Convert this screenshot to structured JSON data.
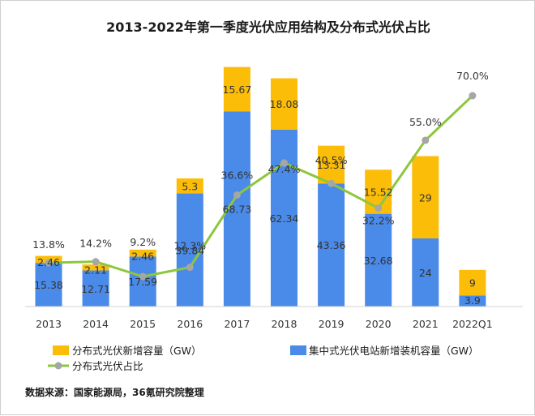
{
  "chart_data": {
    "type": "bar",
    "stacked": true,
    "title": "2013-2022年第一季度光伏应用结构及分布式光伏占比",
    "categories": [
      "2013",
      "2014",
      "2015",
      "2016",
      "2017",
      "2018",
      "2019",
      "2020",
      "2021",
      "2022Q1"
    ],
    "series": [
      {
        "name": "集中式光伏电站新增装机容量（GW）",
        "type": "bar",
        "color": "#4a8ae8",
        "values": [
          15.38,
          12.71,
          17.59,
          39.84,
          68.73,
          62.34,
          43.36,
          32.68,
          24,
          3.9
        ],
        "labels": [
          "15.38",
          "12.71",
          "17.59",
          "39.84",
          "68.73",
          "62.34",
          "43.36",
          "32.68",
          "24",
          "3.9"
        ]
      },
      {
        "name": "分布式光伏新增容量（GW）",
        "type": "bar",
        "color": "#fbbd08",
        "values": [
          2.46,
          2.11,
          2.46,
          5.3,
          15.67,
          18.08,
          13.31,
          15.52,
          29,
          9
        ],
        "labels": [
          "2.46",
          "2.11",
          "2.46",
          "5.3",
          "15.67",
          "18.08",
          "13.31",
          "15.52",
          "29",
          "9"
        ]
      },
      {
        "name": "分布式光伏占比",
        "type": "line",
        "color": "#8dc63f",
        "marker_color": "#a6a6a6",
        "values": [
          13.8,
          14.2,
          9.2,
          12.3,
          36.6,
          47.4,
          40.5,
          32.2,
          55.0,
          70.0
        ],
        "labels": [
          "13.8%",
          "14.2%",
          "9.2%",
          "12.3%",
          "36.6%",
          "47.4%",
          "40.5%",
          "32.2%",
          "55.0%",
          "70.0%"
        ]
      }
    ],
    "legend": {
      "position": "bottom",
      "items": [
        "分布式光伏新增容量（GW）",
        "集中式光伏电站新增装机容量（GW）",
        "分布式光伏占比"
      ]
    },
    "source": "数据来源：国家能源局，36氪研究院整理",
    "grid": false
  }
}
